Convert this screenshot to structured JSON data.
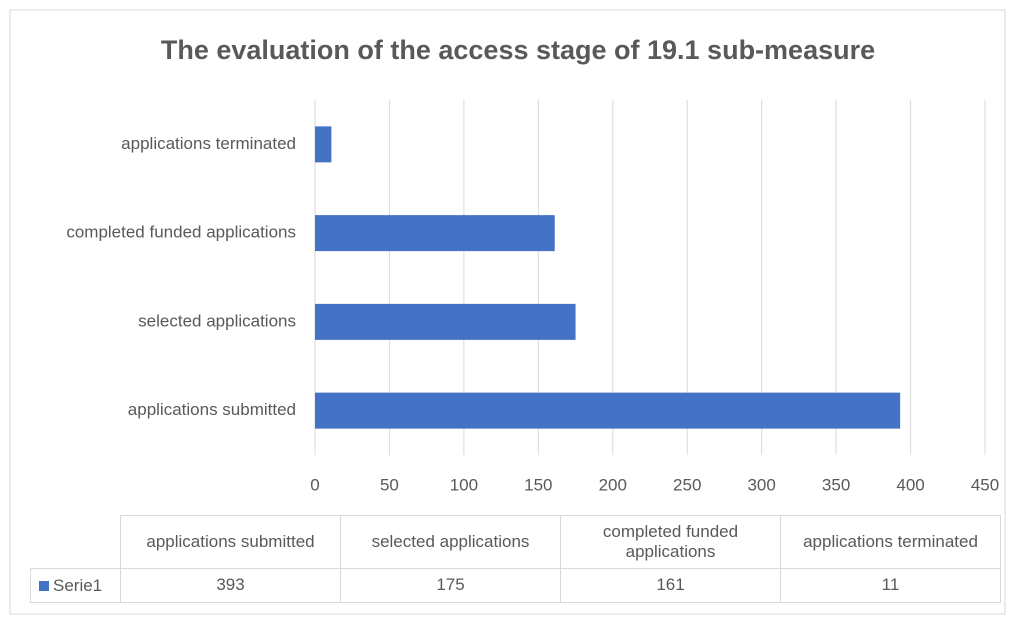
{
  "chart_data": {
    "type": "bar",
    "orientation": "horizontal",
    "title": "The evaluation of the access stage of 19.1 sub-measure",
    "categories": [
      "applications submitted",
      "selected applications",
      "completed funded applications",
      "applications terminated"
    ],
    "series": [
      {
        "name": "Serie1",
        "color": "#4472c4",
        "values": [
          393,
          175,
          161,
          11
        ]
      }
    ],
    "xlim": [
      0,
      450
    ],
    "xticks": [
      0,
      50,
      100,
      150,
      200,
      250,
      300,
      350,
      400,
      450
    ],
    "grid": true,
    "data_table": true
  }
}
